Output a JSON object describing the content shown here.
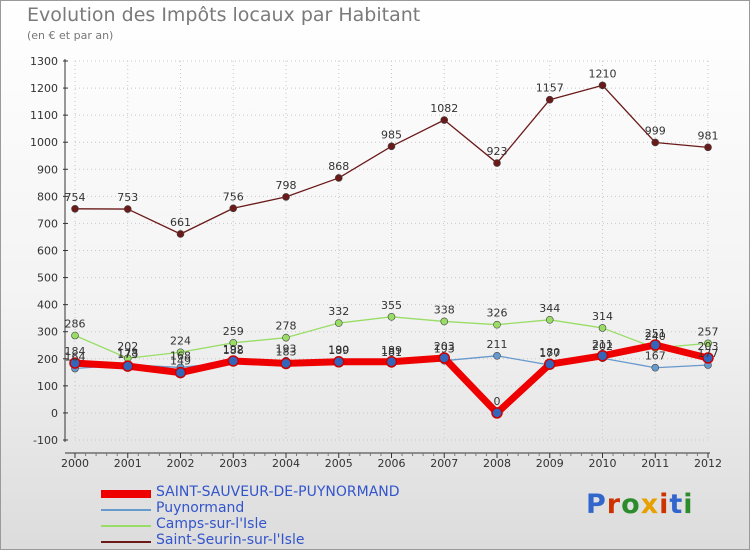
{
  "title": "Evolution des Impôts locaux par Habitant",
  "subtitle": "(en € et par an)",
  "logo": {
    "text": "Proxiti",
    "colors": [
      "#3366cc",
      "#cc3300",
      "#2c8c2c",
      "#e8a000",
      "#cc3300",
      "#3366cc",
      "#2c8c2c"
    ]
  },
  "chart_data": {
    "type": "line",
    "title": "Evolution des Impôts locaux par Habitant",
    "subtitle": "(en € et par an)",
    "xlabel": "",
    "ylabel": "",
    "x": [
      "2000",
      "2001",
      "2002",
      "2003",
      "2004",
      "2005",
      "2006",
      "2007",
      "2008",
      "2009",
      "2010",
      "2011",
      "2012"
    ],
    "ylim": [
      -100,
      1300
    ],
    "yticks": [
      -100,
      0,
      100,
      200,
      300,
      400,
      500,
      600,
      700,
      800,
      900,
      1000,
      1100,
      1200,
      1300
    ],
    "legend_position": "bottom-left",
    "series": [
      {
        "name": "Saint-Seurin-sur-l'Isle",
        "color": "#6b1a1a",
        "width": 1.3,
        "values": [
          754,
          753,
          661,
          756,
          798,
          868,
          985,
          1082,
          923,
          1157,
          1210,
          999,
          981
        ],
        "labels": [
          "754",
          "753",
          "661",
          "756",
          "798",
          "868",
          "985",
          "1082",
          "923",
          "1157",
          "1210",
          "999",
          "981"
        ]
      },
      {
        "name": "Camps-sur-l'Isle",
        "color": "#99dd66",
        "width": 1.3,
        "values": [
          286,
          202,
          224,
          259,
          278,
          332,
          355,
          338,
          326,
          344,
          314,
          240,
          257
        ],
        "labels": [
          "286",
          "202",
          "224",
          "259",
          "278",
          "332",
          "355",
          "338",
          "326",
          "344",
          "314",
          "240",
          "257"
        ]
      },
      {
        "name": "Puynormand",
        "color": "#6699cc",
        "width": 1.3,
        "values": [
          164,
          178,
          168,
          188,
          193,
          190,
          181,
          193,
          211,
          177,
          202,
          167,
          177
        ],
        "labels": [
          "164",
          "178",
          "168",
          "188",
          "193",
          "190",
          "181",
          "193",
          "211",
          "177",
          "202",
          "167",
          "177"
        ]
      },
      {
        "name": "SAINT-SAUVEUR-DE-PUYNORMAND",
        "color": "#ee0000",
        "width": 7,
        "values": [
          184,
          173,
          149,
          192,
          183,
          189,
          189,
          203,
          0,
          180,
          211,
          251,
          203
        ],
        "labels": [
          "184",
          "173",
          "149",
          "192",
          "183",
          "189",
          "189",
          "203",
          "0",
          "180",
          "211",
          "251",
          "203"
        ]
      }
    ]
  }
}
